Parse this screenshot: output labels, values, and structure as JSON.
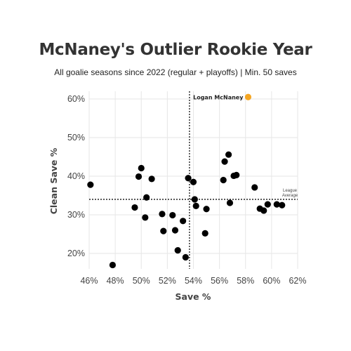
{
  "chart_data": {
    "type": "scatter",
    "title": "McNaney's Outlier Rookie Year",
    "subtitle": "All goalie seasons since 2022 (regular + playoffs) | Min. 50 saves",
    "xlabel": "Save %",
    "ylabel": "Clean Save %",
    "xlim": [
      46,
      62
    ],
    "ylim": [
      16,
      62
    ],
    "x_ticks": [
      46,
      48,
      50,
      52,
      54,
      56,
      58,
      60,
      62
    ],
    "y_ticks": [
      20,
      30,
      40,
      50,
      60
    ],
    "x_tick_labels": [
      "46%",
      "48%",
      "50%",
      "52%",
      "54%",
      "56%",
      "58%",
      "60%",
      "62%"
    ],
    "y_tick_labels": [
      "20%",
      "30%",
      "40%",
      "50%",
      "60%"
    ],
    "grid": true,
    "point_color": "#000000",
    "highlight_color": "#F5A623",
    "reference_lines": {
      "x": 53.7,
      "y": 34,
      "y_label_line1": "League",
      "y_label_line2": "Average"
    },
    "highlight": {
      "name": "Logan McNaney",
      "x": 58.2,
      "y": 60.5
    },
    "points": [
      {
        "x": 46.1,
        "y": 37.8
      },
      {
        "x": 47.8,
        "y": 17.0
      },
      {
        "x": 49.5,
        "y": 31.9
      },
      {
        "x": 49.8,
        "y": 39.9
      },
      {
        "x": 50.0,
        "y": 42.1
      },
      {
        "x": 50.3,
        "y": 29.3
      },
      {
        "x": 50.4,
        "y": 34.5
      },
      {
        "x": 50.8,
        "y": 39.3
      },
      {
        "x": 51.6,
        "y": 30.2
      },
      {
        "x": 51.7,
        "y": 25.8
      },
      {
        "x": 52.4,
        "y": 29.9
      },
      {
        "x": 52.6,
        "y": 26.0
      },
      {
        "x": 52.8,
        "y": 20.8
      },
      {
        "x": 53.2,
        "y": 28.4
      },
      {
        "x": 53.4,
        "y": 19.0
      },
      {
        "x": 53.6,
        "y": 39.5
      },
      {
        "x": 54.0,
        "y": 38.5
      },
      {
        "x": 54.1,
        "y": 34.0
      },
      {
        "x": 54.2,
        "y": 32.3
      },
      {
        "x": 54.9,
        "y": 25.2
      },
      {
        "x": 55.0,
        "y": 31.5
      },
      {
        "x": 56.3,
        "y": 39.0
      },
      {
        "x": 56.4,
        "y": 43.8
      },
      {
        "x": 56.7,
        "y": 45.6
      },
      {
        "x": 56.8,
        "y": 33.1
      },
      {
        "x": 57.1,
        "y": 40.1
      },
      {
        "x": 57.3,
        "y": 40.3
      },
      {
        "x": 58.7,
        "y": 37.1
      },
      {
        "x": 59.1,
        "y": 31.6
      },
      {
        "x": 59.4,
        "y": 31.1
      },
      {
        "x": 59.7,
        "y": 32.7
      },
      {
        "x": 60.4,
        "y": 32.7
      },
      {
        "x": 60.8,
        "y": 32.5
      }
    ]
  }
}
